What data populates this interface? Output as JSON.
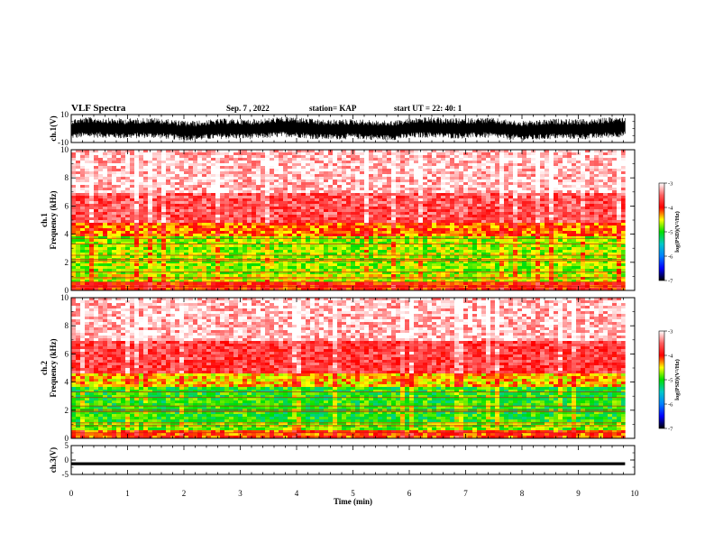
{
  "header": {
    "title": "VLF Spectra",
    "date": "Sep. 7 , 2022",
    "station": "station= KAP",
    "start_ut": "start UT =  22: 40: 1"
  },
  "chart_data": [
    {
      "type": "line",
      "panel": "ch1-waveform",
      "ylabel": "ch.1(V)",
      "ylim": [
        -10,
        10
      ],
      "yticks": [
        "10",
        "-10"
      ],
      "xlim": [
        0,
        10
      ],
      "data_end_min": 9.83,
      "trace_color": "#000000",
      "signal": "noise filling roughly -9 to 8 V with slow undulation",
      "approx_envelope_V": [
        -9,
        8
      ]
    },
    {
      "type": "heatmap",
      "panel": "ch1-spectrogram",
      "ylabel": "ch.1\nFrequency (kHz)",
      "ylim": [
        0,
        10
      ],
      "yticks": [
        "0",
        "2",
        "4",
        "6",
        "8",
        "10"
      ],
      "xlim": [
        0,
        10
      ],
      "data_end_min": 9.83,
      "colorbar": {
        "label": "log(PSD)(V²/Hz)",
        "range": [
          -7,
          -3
        ],
        "ticks": [
          "-3",
          "-4",
          "-5",
          "-6",
          "-7"
        ]
      },
      "bands": [
        {
          "from_khz": 0.0,
          "to_khz": 0.6,
          "log_psd": -4.0
        },
        {
          "from_khz": 0.6,
          "to_khz": 1.2,
          "log_psd": -4.6
        },
        {
          "from_khz": 1.2,
          "to_khz": 3.8,
          "log_psd": -4.7
        },
        {
          "from_khz": 3.8,
          "to_khz": 4.8,
          "log_psd": -4.2
        },
        {
          "from_khz": 4.8,
          "to_khz": 7.0,
          "log_psd": -3.6
        },
        {
          "from_khz": 7.0,
          "to_khz": 10.0,
          "log_psd": -3.2
        }
      ],
      "narrowband_lines_khz": [
        0.3,
        0.6,
        0.9,
        1.3,
        2.1,
        2.2,
        2.5,
        3.3,
        3.7
      ]
    },
    {
      "type": "heatmap",
      "panel": "ch2-spectrogram",
      "ylabel": "ch.2\nFrequency (kHz)",
      "ylim": [
        0,
        10
      ],
      "yticks": [
        "0",
        "2",
        "4",
        "6",
        "8",
        "10"
      ],
      "xlim": [
        0,
        10
      ],
      "data_end_min": 9.83,
      "colorbar": {
        "label": "log(PSD)(V²/Hz)",
        "range": [
          -7,
          -3
        ],
        "ticks": [
          "-3",
          "-4",
          "-5",
          "-6",
          "-7"
        ]
      },
      "bands": [
        {
          "from_khz": 0.0,
          "to_khz": 0.5,
          "log_psd": -4.1
        },
        {
          "from_khz": 0.5,
          "to_khz": 1.2,
          "log_psd": -4.8
        },
        {
          "from_khz": 1.2,
          "to_khz": 3.6,
          "log_psd": -5.0
        },
        {
          "from_khz": 3.6,
          "to_khz": 4.6,
          "log_psd": -4.4
        },
        {
          "from_khz": 4.6,
          "to_khz": 7.0,
          "log_psd": -3.7
        },
        {
          "from_khz": 7.0,
          "to_khz": 10.0,
          "log_psd": -3.2
        }
      ],
      "narrowband_lines_khz": [
        0.4,
        0.9,
        1.1,
        1.9,
        2.0,
        2.3,
        2.9,
        3.3
      ]
    },
    {
      "type": "line",
      "panel": "ch3-waveform",
      "ylabel": "ch.3(V)",
      "ylim": [
        -5,
        5
      ],
      "yticks": [
        "5",
        "0",
        "-5"
      ],
      "xlim": [
        0,
        10
      ],
      "xlabel": "Time (min)",
      "xticks": [
        "0",
        "1",
        "2",
        "3",
        "4",
        "5",
        "6",
        "7",
        "8",
        "9",
        "10"
      ],
      "data_end_min": 9.83,
      "trace_color": "#000000",
      "signal": "flat band centred near -1.3 V, about 1 V wide",
      "center_V": -1.3,
      "width_V": 1.0
    }
  ],
  "colorscale": [
    {
      "log_psd": -7,
      "color": "#000000"
    },
    {
      "log_psd": -6.5,
      "color": "#0000ff"
    },
    {
      "log_psd": -6.0,
      "color": "#0080ff"
    },
    {
      "log_psd": -5.5,
      "color": "#00c8c8"
    },
    {
      "log_psd": -5.0,
      "color": "#00e000"
    },
    {
      "log_psd": -4.5,
      "color": "#ffff00"
    },
    {
      "log_psd": -4.0,
      "color": "#ff0000"
    },
    {
      "log_psd": -3.5,
      "color": "#ff6060"
    },
    {
      "log_psd": -3.0,
      "color": "#ffffff"
    }
  ]
}
